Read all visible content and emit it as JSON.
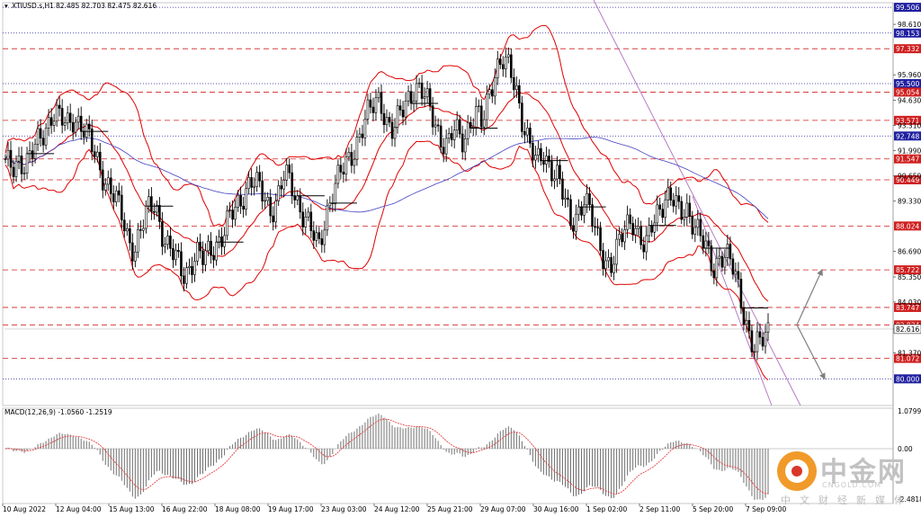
{
  "header": {
    "symbol": "XTIUSD.s,H1",
    "ohlc": "82.485 82.703 82.475 82.616"
  },
  "macd": {
    "label": "MACD(12,26,9) -1.0560 -1.2519",
    "axis_labels": [
      "1.0799",
      "0.00",
      "-2.4818"
    ]
  },
  "watermark": {
    "title": "中金网",
    "url": "CNGOLD.COM",
    "subtitle": "中文财经新媒体"
  },
  "colors": {
    "candles": "#000000",
    "bollinger": "#e00000",
    "ma": "#4040c0",
    "channel": "#b070c0",
    "red_levels": "#d02020",
    "blue_levels": "#2020a0",
    "histogram": "#707070",
    "signal": "#e04040",
    "arrows": "#808080"
  },
  "chart_data": {
    "type": "candlestick",
    "price_axis": {
      "range": [
        78.6,
        99.7
      ],
      "tick_labels": [
        "98.610",
        "95.960",
        "94.630",
        "93.310",
        "91.990",
        "90.650",
        "89.330",
        "86.690",
        "85.350",
        "84.030",
        "82.610",
        "81.370"
      ]
    },
    "time_axis": {
      "labels": [
        "10 Aug 2022",
        "12 Aug 04:00",
        "15 Aug 13:00",
        "16 Aug 22:00",
        "18 Aug 08:00",
        "19 Aug 17:00",
        "23 Aug 03:00",
        "24 Aug 12:00",
        "25 Aug 21:00",
        "29 Aug 07:00",
        "30 Aug 16:00",
        "1 Sep 02:00",
        "2 Sep 11:00",
        "5 Sep 20:00",
        "7 Sep 09:00"
      ]
    },
    "levels": [
      {
        "label": "99.506",
        "value": 99.506,
        "color": "#2020a0"
      },
      {
        "label": "98.153",
        "value": 98.153,
        "color": "#2020a0"
      },
      {
        "label": "97.332",
        "value": 97.332,
        "color": "#d02020"
      },
      {
        "label": "95.500",
        "value": 95.5,
        "color": "#2020a0"
      },
      {
        "label": "95.054",
        "value": 95.054,
        "color": "#d02020"
      },
      {
        "label": "93.571",
        "value": 93.571,
        "color": "#d02020"
      },
      {
        "label": "92.748",
        "value": 92.748,
        "color": "#2020a0"
      },
      {
        "label": "91.547",
        "value": 91.547,
        "color": "#d02020"
      },
      {
        "label": "90.449",
        "value": 90.449,
        "color": "#d02020"
      },
      {
        "label": "88.024",
        "value": 88.024,
        "color": "#d02020"
      },
      {
        "label": "85.722",
        "value": 85.722,
        "color": "#d02020"
      },
      {
        "label": "83.747",
        "value": 83.747,
        "color": "#d02020"
      },
      {
        "label": "82.834",
        "value": 82.834,
        "color": "#d02020"
      },
      {
        "label": "81.072",
        "value": 81.072,
        "color": "#d02020"
      },
      {
        "label": "80.000",
        "value": 80.0,
        "color": "#2020a0"
      }
    ],
    "current_price": {
      "label": "82.616",
      "value": 82.616
    },
    "closes": [
      91.2,
      91.0,
      91.6,
      91.3,
      91.8,
      92.5,
      93.3,
      94.1,
      93.6,
      93.2,
      93.8,
      93.5,
      92.7,
      91.8,
      91.0,
      90.3,
      89.5,
      88.6,
      87.4,
      86.9,
      87.9,
      88.8,
      89.3,
      87.8,
      86.7,
      86.3,
      85.6,
      85.9,
      86.5,
      86.2,
      86.8,
      87.2,
      87.5,
      88.4,
      89.1,
      89.8,
      90.4,
      90.0,
      89.6,
      88.9,
      89.5,
      90.6,
      90.2,
      89.3,
      88.5,
      87.6,
      86.8,
      88.6,
      89.8,
      90.5,
      91.2,
      92.0,
      92.8,
      93.6,
      94.3,
      94.9,
      93.5,
      92.8,
      93.9,
      94.8,
      95.3,
      95.0,
      94.4,
      93.7,
      92.6,
      92.1,
      93.1,
      92.6,
      93.3,
      93.9,
      93.2,
      95.0,
      96.4,
      96.7,
      96.1,
      95.2,
      93.6,
      92.3,
      91.1,
      91.8,
      91.3,
      90.7,
      89.4,
      88.2,
      88.8,
      89.5,
      88.4,
      87.3,
      86.4,
      86.0,
      86.8,
      87.9,
      88.6,
      87.6,
      86.6,
      88.1,
      89.1,
      89.6,
      89.3,
      88.6,
      89.1,
      88.3,
      87.4,
      86.6,
      85.9,
      86.6,
      86.3,
      85.6,
      84.3,
      82.7,
      81.4,
      81.9,
      82.6
    ]
  }
}
